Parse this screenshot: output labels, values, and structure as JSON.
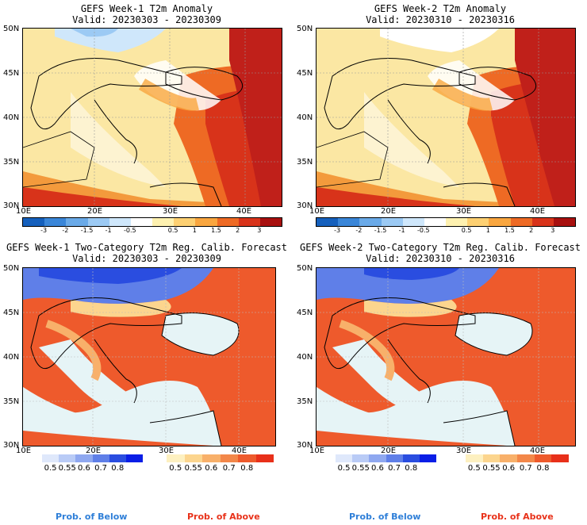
{
  "panels": [
    {
      "title": "GEFS Week-1 T2m Anomaly",
      "valid": "Valid: 20230303 - 20230309"
    },
    {
      "title": "GEFS Week-2 T2m Anomaly",
      "valid": "Valid: 20230310 - 20230316"
    },
    {
      "title": "GEFS Week-1 Two-Category T2m Reg. Calib. Forecast",
      "valid": "Valid: 20230303 - 20230309"
    },
    {
      "title": "GEFS Week-2 Two-Category T2m Reg. Calib. Forecast",
      "valid": "Valid: 20230310 - 20230316"
    }
  ],
  "lat_labels": [
    "50N",
    "45N",
    "40N",
    "35N",
    "30N"
  ],
  "lon_labels": [
    "10E",
    "20E",
    "30E",
    "40E"
  ],
  "anomaly_colorbar": {
    "ticks": [
      "-3",
      "-2",
      "-1.5",
      "-1",
      "-0.5",
      "0.5",
      "1",
      "1.5",
      "2",
      "3"
    ],
    "colors": [
      "#1560bd",
      "#3a86d8",
      "#6aaae8",
      "#9ccaf4",
      "#cfe7fb",
      "#ffffff",
      "#fef1b0",
      "#fdd072",
      "#f9a63f",
      "#ee6a24",
      "#d8331a",
      "#a8100f"
    ]
  },
  "below_colorbar": {
    "ticks": [
      "0.5",
      "0.55",
      "0.6",
      "0.7",
      "0.8"
    ],
    "colors": [
      "#dfe8fb",
      "#b9cbf6",
      "#8fa8f0",
      "#5f7fe8",
      "#2a4de0",
      "#0a1ee6"
    ]
  },
  "above_colorbar": {
    "ticks": [
      "0.5",
      "0.55",
      "0.6",
      "0.7",
      "0.8"
    ],
    "colors": [
      "#fdf0c0",
      "#fcd58e",
      "#f8b06a",
      "#f38749",
      "#ee5a2c",
      "#e8301a"
    ]
  },
  "legend": {
    "below": "Prob. of Below",
    "above": "Prob. of Above"
  },
  "colors": {
    "below_text": "#2f7fd8",
    "above_text": "#e8321a"
  }
}
